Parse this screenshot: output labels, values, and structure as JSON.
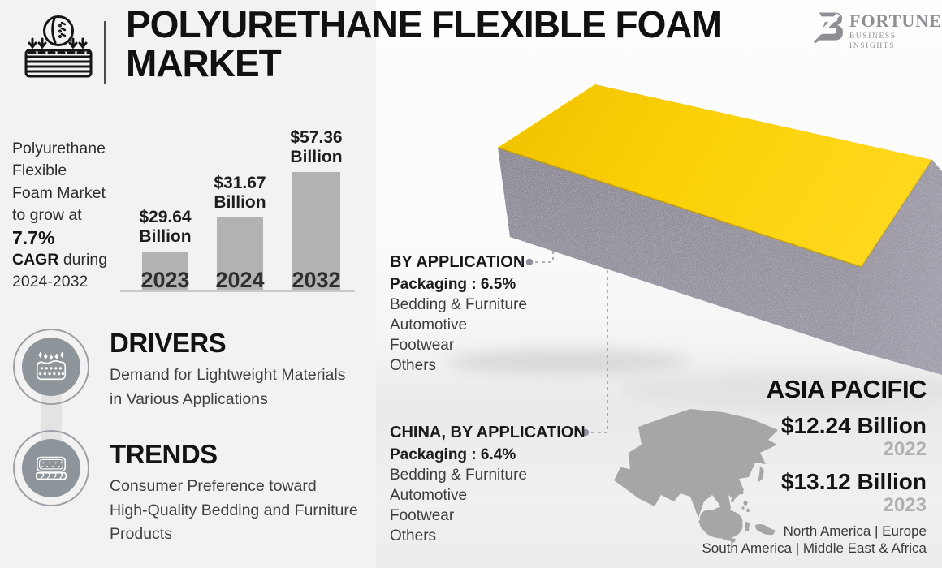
{
  "header": {
    "title_line1": "POLYURETHANE FLEXIBLE FOAM",
    "title_line2": "MARKET"
  },
  "brand": {
    "name": "FORTUNE",
    "tagline": "BUSINESS INSIGHTS",
    "mark": "FB"
  },
  "growth_note": {
    "lines": [
      [
        {
          "t": "Polyurethane"
        }
      ],
      [
        {
          "t": "Flexible"
        }
      ],
      [
        {
          "t": "Foam Market"
        }
      ],
      [
        {
          "t": "to grow at"
        }
      ],
      [
        {
          "t": "7.7%",
          "b": true
        }
      ],
      [
        {
          "t": "CAGR",
          "b": true
        },
        {
          "t": " during"
        }
      ],
      [
        {
          "t": "2024-2032"
        }
      ]
    ]
  },
  "chart_data": {
    "type": "bar",
    "categories": [
      "2023",
      "2024",
      "2032"
    ],
    "values": [
      29.64,
      31.67,
      57.36
    ],
    "unit": "USD Billion",
    "value_labels": [
      [
        "$29.64",
        "Billion"
      ],
      [
        "$31.67",
        "Billion"
      ],
      [
        "$57.36",
        "Billion"
      ]
    ],
    "title": "Polyurethane Flexible Foam Market size",
    "xlabel": "",
    "ylabel": "",
    "grid": false,
    "legend": false
  },
  "drivers": {
    "heading": "DRIVERS",
    "lines": [
      "Demand for Lightweight Materials",
      "in Various Applications"
    ]
  },
  "trends": {
    "heading": "TRENDS",
    "lines": [
      "Consumer Preference toward",
      "High-Quality Bedding and Furniture",
      "Products"
    ]
  },
  "by_application": {
    "heading": "BY APPLICATION",
    "highlight": "Packaging : 6.5%",
    "items": [
      "Bedding & Furniture",
      "Automotive",
      "Footwear",
      "Others"
    ]
  },
  "china_by_application": {
    "heading": "CHINA, BY APPLICATION",
    "highlight": "Packaging : 6.4%",
    "items": [
      "Bedding & Furniture",
      "Automotive",
      "Footwear",
      "Others"
    ]
  },
  "asia_pacific": {
    "heading": "ASIA PACIFIC",
    "stats": [
      {
        "value": "$12.24 Billion",
        "year": "2022"
      },
      {
        "value": "$13.12 Billion",
        "year": "2023"
      }
    ]
  },
  "regions": {
    "separator": "|",
    "line1": [
      "North America",
      "Europe"
    ],
    "line2": [
      "South America",
      "Middle East & Africa"
    ]
  },
  "icons": [
    "foam-compression-icon",
    "fortune-logo-mark",
    "foam-dots-icon",
    "mattress-springs-icon",
    "asia-map",
    "foam-block-photo"
  ],
  "colors": {
    "accent_yellow": "#F6C60A",
    "foam_gray": "#8E8B98",
    "bar_gray": "#B3B1B1",
    "map_gray": "#A7A6A6",
    "brand_gray": "#8E8E95",
    "text_dark": "#1B1B1B",
    "muted_gray": "#B1B0B0"
  }
}
